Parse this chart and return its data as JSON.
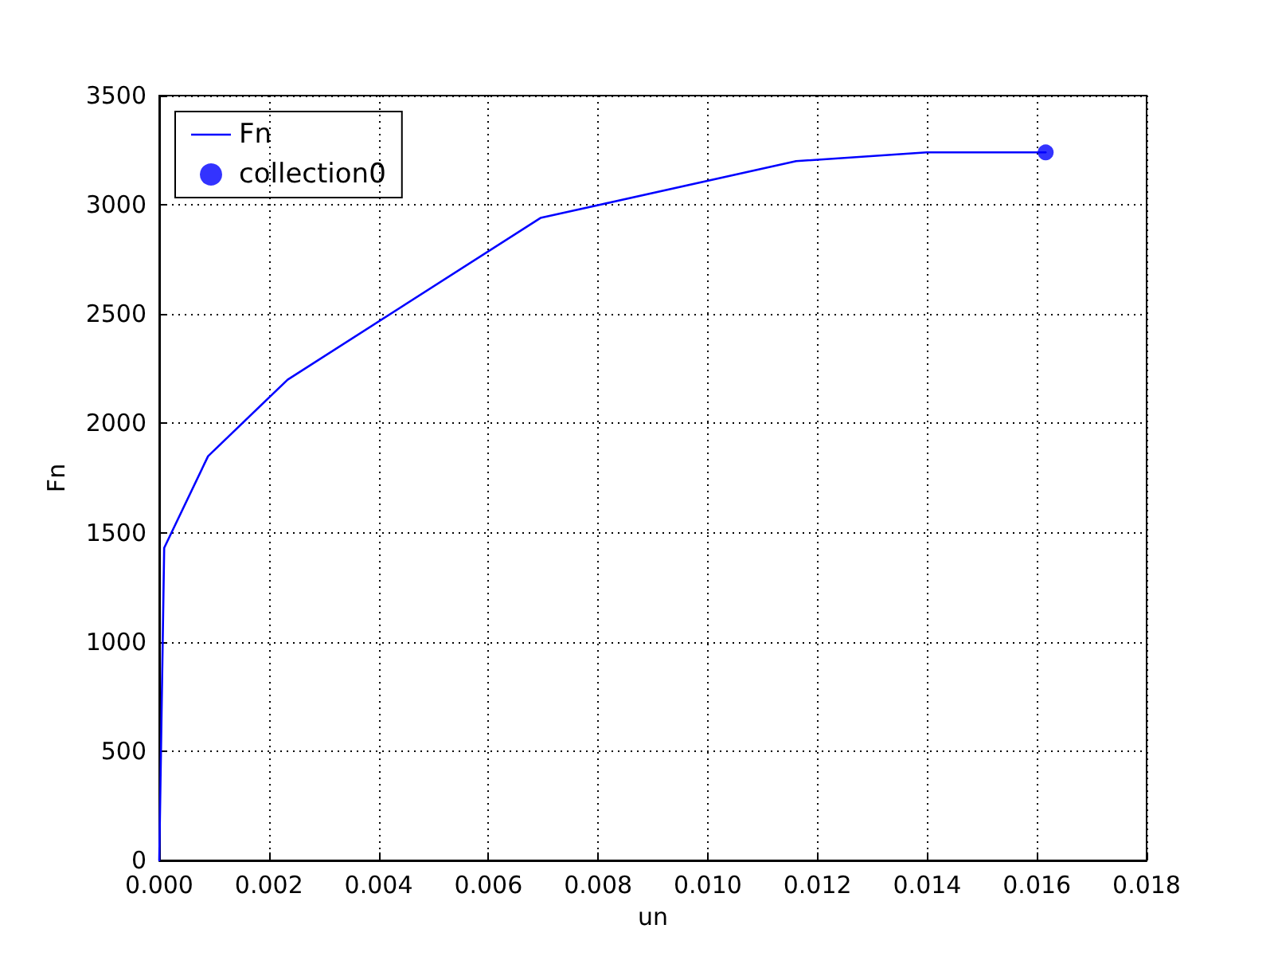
{
  "chart_data": {
    "type": "line",
    "xlabel": "un",
    "ylabel": "Fn",
    "xlim": [
      0,
      0.018
    ],
    "xticks": [
      {
        "value": 0,
        "label": "0.000"
      },
      {
        "value": 0.002,
        "label": "0.002"
      },
      {
        "value": 0.004,
        "label": "0.004"
      },
      {
        "value": 0.006,
        "label": "0.006"
      },
      {
        "value": 0.008,
        "label": "0.008"
      },
      {
        "value": 0.01,
        "label": "0.010"
      },
      {
        "value": 0.012,
        "label": "0.012"
      },
      {
        "value": 0.014,
        "label": "0.014"
      },
      {
        "value": 0.016,
        "label": "0.016"
      },
      {
        "value": 0.018,
        "label": "0.018"
      }
    ],
    "ylim": [
      0,
      3500
    ],
    "yticks": [
      0,
      500,
      1000,
      1500,
      2000,
      2500,
      3000,
      3500
    ],
    "grid": true,
    "legend": "top left",
    "series": [
      {
        "name": "Fn",
        "color": "#0000ff",
        "marker": "none",
        "x": [
          0,
          9e-05,
          0.00089,
          0.00234,
          0.00695,
          0.01161,
          0.01399,
          0.01616
        ],
        "values": [
          0,
          1430,
          1850,
          2200,
          2940,
          3200,
          3240,
          3240
        ]
      },
      {
        "name": "collection0",
        "type": "scatter",
        "color": "#0000ff",
        "marker": "circle",
        "x": [
          0.01616
        ],
        "values": [
          3240
        ]
      }
    ]
  }
}
